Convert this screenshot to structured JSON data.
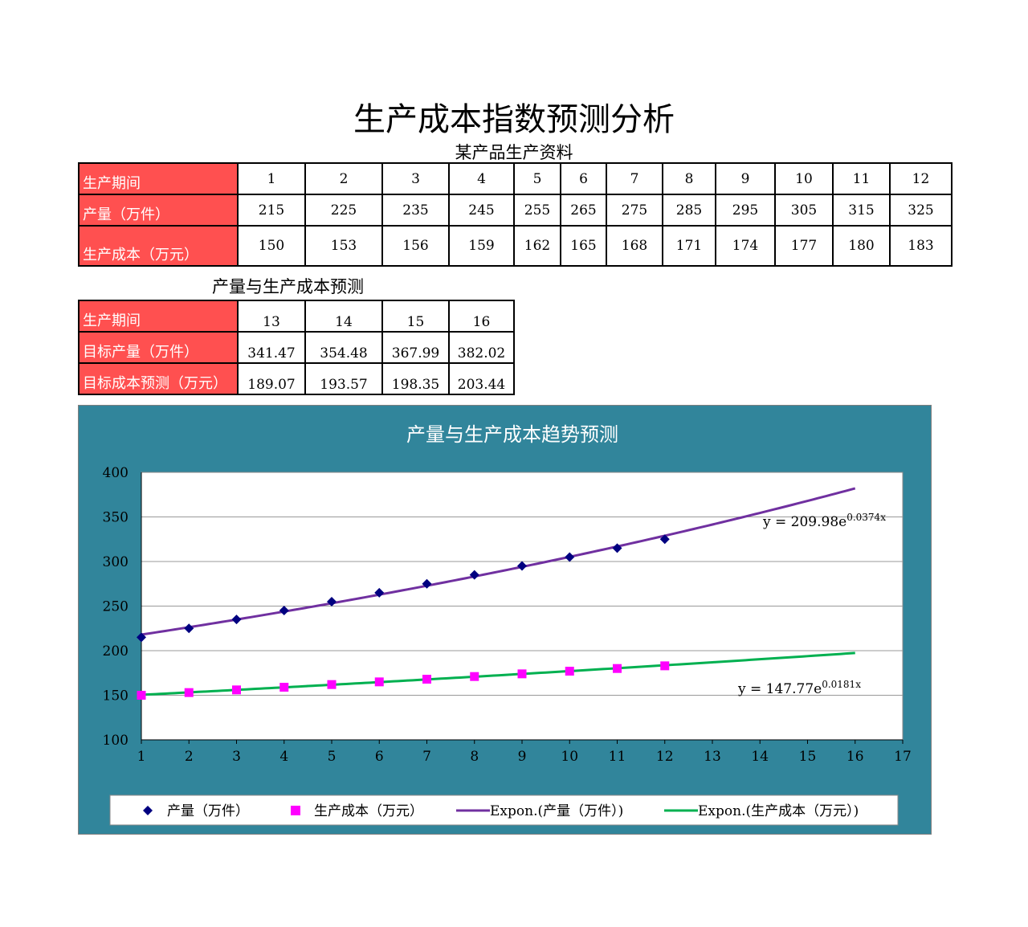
{
  "title": "生产成本指数预测分析",
  "table1": {
    "caption": "某产品生产资料",
    "rows": [
      {
        "label": "生产期间",
        "values": [
          "1",
          "2",
          "3",
          "4",
          "5",
          "6",
          "7",
          "8",
          "9",
          "10",
          "11",
          "12"
        ]
      },
      {
        "label": "产量（万件）",
        "values": [
          "215",
          "225",
          "235",
          "245",
          "255",
          "265",
          "275",
          "285",
          "295",
          "305",
          "315",
          "325"
        ]
      },
      {
        "label": "生产成本（万元）",
        "values": [
          "150",
          "153",
          "156",
          "159",
          "162",
          "165",
          "168",
          "171",
          "174",
          "177",
          "180",
          "183"
        ]
      }
    ]
  },
  "table2": {
    "caption": "产量与生产成本预测",
    "rows": [
      {
        "label": "生产期间",
        "values": [
          "13",
          "14",
          "15",
          "16"
        ]
      },
      {
        "label": "目标产量（万件）",
        "values": [
          "341.47",
          "354.48",
          "367.99",
          "382.02"
        ]
      },
      {
        "label": "目标成本预测（万元）",
        "values": [
          "189.07",
          "193.57",
          "198.35",
          "203.44"
        ]
      }
    ]
  },
  "colors": {
    "header_red": "#ff5050",
    "chart_bg": "#31859b",
    "series1": "#000080",
    "series2": "#ff00ff",
    "trend1": "#7030a0",
    "trend2": "#00b050"
  },
  "chart_data": {
    "type": "scatter",
    "title": "产量与生产成本趋势预测",
    "xlim": [
      1,
      17
    ],
    "ylim": [
      100,
      400
    ],
    "xticks": [
      1,
      2,
      3,
      4,
      5,
      6,
      7,
      8,
      9,
      10,
      11,
      12,
      13,
      14,
      15,
      16,
      17
    ],
    "yticks": [
      100,
      150,
      200,
      250,
      300,
      350,
      400
    ],
    "grid": "horizontal",
    "legend_position": "bottom",
    "series": [
      {
        "name": "产量（万件）",
        "marker": "diamond",
        "color": "#000080",
        "x": [
          1,
          2,
          3,
          4,
          5,
          6,
          7,
          8,
          9,
          10,
          11,
          12
        ],
        "y": [
          215,
          225,
          235,
          245,
          255,
          265,
          275,
          285,
          295,
          305,
          315,
          325
        ]
      },
      {
        "name": "生产成本（万元）",
        "marker": "square",
        "color": "#ff00ff",
        "x": [
          1,
          2,
          3,
          4,
          5,
          6,
          7,
          8,
          9,
          10,
          11,
          12
        ],
        "y": [
          150,
          153,
          156,
          159,
          162,
          165,
          168,
          171,
          174,
          177,
          180,
          183
        ]
      }
    ],
    "trendlines": [
      {
        "name": "Expon.(产量（万件）)",
        "color": "#7030a0",
        "a": 209.98,
        "b": 0.0374,
        "x_range": [
          1,
          16
        ],
        "label_prefix": "y = 209.98e",
        "label_exp": "0.0374x"
      },
      {
        "name": "Expon.(生产成本（万元）)",
        "color": "#00b050",
        "a": 147.77,
        "b": 0.0181,
        "x_range": [
          1,
          16
        ],
        "label_prefix": "y = 147.77e",
        "label_exp": "0.0181x"
      }
    ]
  }
}
